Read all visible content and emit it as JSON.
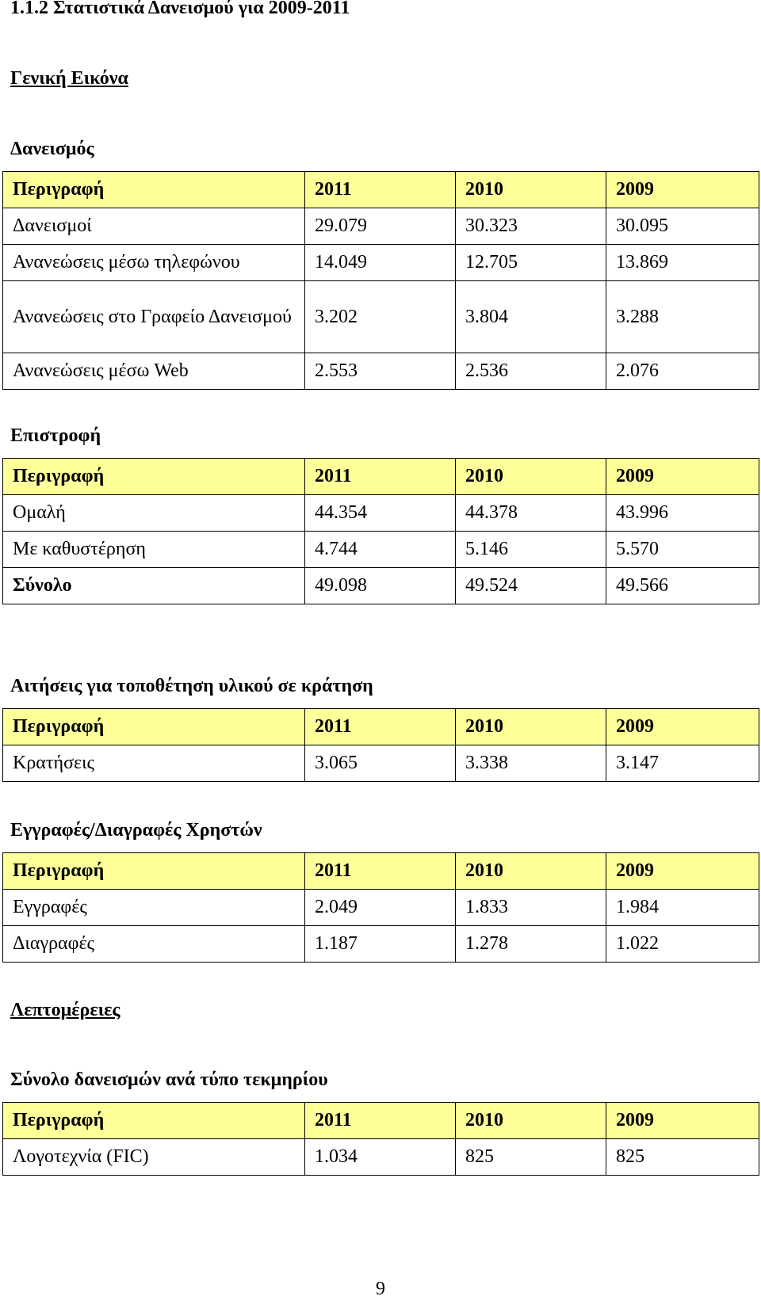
{
  "heading": "1.1.2 Στατιστικά Δανεισμού για 2009-2011",
  "section_general": "Γενική Εικόνα",
  "section_details": "Λεπτομέρειες",
  "header_row": [
    "Περιγραφή",
    "2011",
    "2010",
    "2009"
  ],
  "loans": {
    "title": "Δανεισμός",
    "rows": [
      [
        "Δανεισμοί",
        "29.079",
        "30.323",
        "30.095"
      ],
      [
        "Ανανεώσεις μέσω τηλεφώνου",
        "14.049",
        "12.705",
        "13.869"
      ],
      [
        "Ανανεώσεις στο Γραφείο Δανεισμού",
        "3.202",
        "3.804",
        "3.288"
      ],
      [
        "Ανανεώσεις μέσω Web",
        "2.553",
        "2.536",
        "2.076"
      ]
    ]
  },
  "returns": {
    "title": "Επιστροφή",
    "rows": [
      [
        "Ομαλή",
        "44.354",
        "44.378",
        "43.996"
      ],
      [
        "Με καθυστέρηση",
        "4.744",
        "5.146",
        "5.570"
      ],
      [
        "Σύνολο",
        "49.098",
        "49.524",
        "49.566"
      ]
    ]
  },
  "reservations": {
    "title": "Αιτήσεις για τοποθέτηση υλικού σε κράτηση",
    "rows": [
      [
        "Κρατήσεις",
        "3.065",
        "3.338",
        "3.147"
      ]
    ]
  },
  "users": {
    "title": "Εγγραφές/Διαγραφές Χρηστών",
    "rows": [
      [
        "Εγγραφές",
        "2.049",
        "1.833",
        "1.984"
      ],
      [
        "Διαγραφές",
        "1.187",
        "1.278",
        "1.022"
      ]
    ]
  },
  "by_type": {
    "title": "Σύνολο δανεισμών ανά τύπο τεκμηρίου",
    "rows": [
      [
        "Λογοτεχνία (FIC)",
        "1.034",
        "825",
        "825"
      ]
    ]
  },
  "page_number": "9"
}
